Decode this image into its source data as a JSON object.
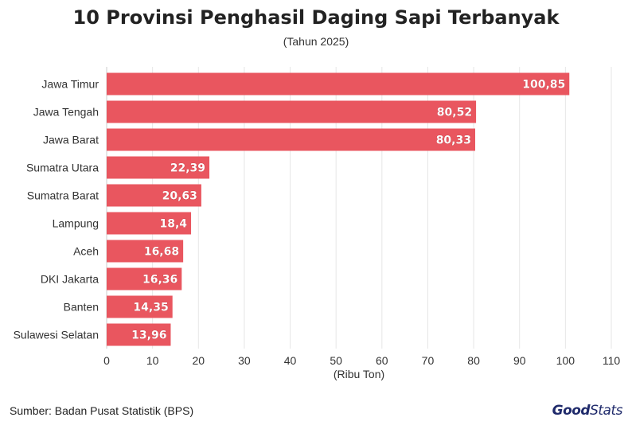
{
  "chart_data": {
    "type": "bar",
    "orientation": "horizontal",
    "title": "10 Provinsi Penghasil Daging Sapi Terbanyak",
    "subtitle": "(Tahun 2025)",
    "xlabel": "(Ribu Ton)",
    "ylabel": "",
    "xlim": [
      0,
      110
    ],
    "xticks": [
      0,
      10,
      20,
      30,
      40,
      50,
      60,
      70,
      80,
      90,
      100,
      110
    ],
    "categories": [
      "Jawa Timur",
      "Jawa Tengah",
      "Jawa Barat",
      "Sumatra Utara",
      "Sumatra Barat",
      "Lampung",
      "Aceh",
      "DKI Jakarta",
      "Banten",
      "Sulawesi Selatan"
    ],
    "values": [
      100.85,
      80.52,
      80.33,
      22.39,
      20.63,
      18.4,
      16.68,
      16.36,
      14.35,
      13.96
    ],
    "value_labels": [
      "100,85",
      "80,52",
      "80,33",
      "22,39",
      "20,63",
      "18,4",
      "16,68",
      "16,36",
      "14,35",
      "13,96"
    ],
    "bar_color": "#e9565f",
    "grid": true
  },
  "footer": {
    "source": "Sumber: Badan Pusat Statistik (BPS)",
    "logo_good": "Good",
    "logo_stats": "Stats"
  }
}
